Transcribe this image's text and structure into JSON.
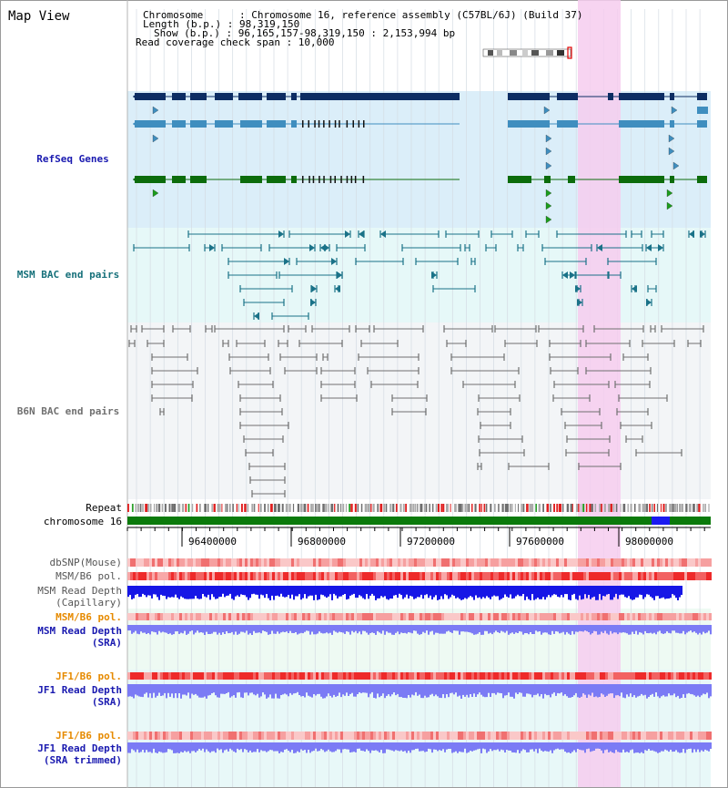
{
  "view": {
    "title": "Map View"
  },
  "info": {
    "chromosome": "Chromosome      : Chromosome 16, reference assembly (C57BL/6J) (Build 37)",
    "length": "Length (b.p.) : 98,319,150",
    "show": "Show (b.p.) : 96,165,157-98,319,150 : 2,153,994 bp",
    "coverage": "Read coverage check span : 10,000"
  },
  "tracks": {
    "refseq": "RefSeq Genes",
    "msm_bac": "MSM BAC end pairs",
    "b6n_bac": "B6N BAC end pairs",
    "repeat": "Repeat",
    "chromosome": "chromosome 16",
    "dbsnp": "dbSNP(Mouse)",
    "msm_pol": "MSM/B6 pol.",
    "msm_depth_cap_1": "MSM Read Depth",
    "msm_depth_cap_2": "(Capillary)",
    "msm_pol_sra": "MSM/B6 pol.",
    "msm_depth_sra_1": "MSM Read Depth",
    "msm_depth_sra_2": "(SRA)",
    "jf1_pol": "JF1/B6 pol.",
    "jf1_depth_1": "JF1 Read Depth",
    "jf1_depth_2": "(SRA)",
    "jf1_pol_trim": "JF1/B6 pol.",
    "jf1_trim_1": "JF1 Read Depth",
    "jf1_trim_2": "(SRA trimmed)"
  },
  "axis": {
    "ticks": [
      "96400000",
      "96800000",
      "97200000",
      "97600000",
      "98000000"
    ]
  },
  "colors": {
    "refseq_bg": "#dbeef9",
    "msm_bg": "#e6f8f8",
    "b6n_bg": "#f3f5f7",
    "highlight": "#f6cdee",
    "refseq_dark": "#0d2d63",
    "refseq_mid": "#3f8ebf",
    "refseq_green": "#0c6c0c",
    "msm_line": "#1a7288",
    "b6n_line": "#707070",
    "chromosome": "#0b7a0b",
    "chromosome_mark": "#1a1af0",
    "pol_red": "#f03030",
    "depth_blue": "#1616e6",
    "depth_sra": "#7b7bf5",
    "label_blue": "#1a1ab0",
    "label_teal": "#16707a",
    "label_orange": "#e68a00"
  }
}
